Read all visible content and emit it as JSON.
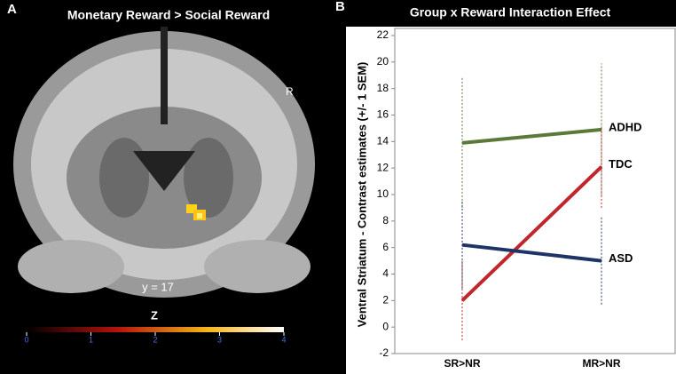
{
  "chart_data": [
    {
      "type": "colorbar",
      "label": "A",
      "title": "Monetary Reward > Social Reward",
      "annotations": [
        "R",
        "y = 17"
      ],
      "colorbar_title": "Z",
      "xlim": [
        0,
        4
      ],
      "xticks": [
        0,
        1,
        2,
        3,
        4
      ]
    },
    {
      "type": "line",
      "label": "B",
      "title": "Group x Reward Interaction Effect",
      "y_label": "Ventral Striatum - Contrast estimates (+/- 1 SEM)",
      "categories": [
        "SR>NR",
        "MR>NR"
      ],
      "series": [
        {
          "name": "ADHD",
          "color": "#5b7a3a",
          "values": [
            13.9,
            14.9
          ],
          "errors": [
            4.9,
            5.0
          ]
        },
        {
          "name": "TDC",
          "color": "#c0262b",
          "values": [
            2.0,
            12.1
          ],
          "errors": [
            3.0,
            3.1
          ]
        },
        {
          "name": "ASD",
          "color": "#1f3466",
          "values": [
            6.2,
            5.0
          ],
          "errors": [
            3.3,
            3.3
          ]
        }
      ],
      "ylim": [
        -2,
        22
      ],
      "yticks": [
        -2,
        0,
        2,
        4,
        6,
        8,
        10,
        12,
        14,
        16,
        18,
        20,
        22
      ]
    }
  ]
}
